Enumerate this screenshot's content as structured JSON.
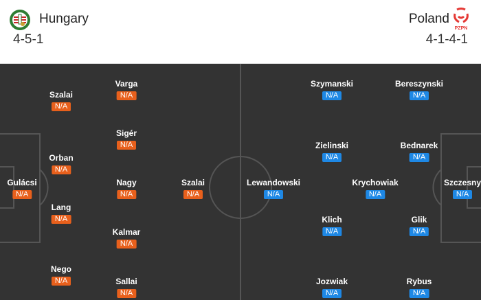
{
  "home": {
    "name": "Hungary",
    "formation": "4-5-1",
    "color": "#e8601c",
    "icon": "hungary-crest-icon",
    "players": [
      {
        "name": "Gulácsi",
        "rating": "N/A"
      },
      {
        "name": "Szalai",
        "rating": "N/A"
      },
      {
        "name": "Orban",
        "rating": "N/A"
      },
      {
        "name": "Lang",
        "rating": "N/A"
      },
      {
        "name": "Nego",
        "rating": "N/A"
      },
      {
        "name": "Varga",
        "rating": "N/A"
      },
      {
        "name": "Sigér",
        "rating": "N/A"
      },
      {
        "name": "Nagy",
        "rating": "N/A"
      },
      {
        "name": "Kalmar",
        "rating": "N/A"
      },
      {
        "name": "Sallai",
        "rating": "N/A"
      },
      {
        "name": "Szalai",
        "rating": "N/A"
      }
    ]
  },
  "away": {
    "name": "Poland",
    "formation": "4-1-4-1",
    "color": "#1e88e5",
    "icon": "pzpn-crest-icon",
    "crest_text": "PZPN",
    "players": [
      {
        "name": "Szczesny",
        "rating": "N/A"
      },
      {
        "name": "Bereszynski",
        "rating": "N/A"
      },
      {
        "name": "Bednarek",
        "rating": "N/A"
      },
      {
        "name": "Glik",
        "rating": "N/A"
      },
      {
        "name": "Rybus",
        "rating": "N/A"
      },
      {
        "name": "Krychowiak",
        "rating": "N/A"
      },
      {
        "name": "Szymanski",
        "rating": "N/A"
      },
      {
        "name": "Zielinski",
        "rating": "N/A"
      },
      {
        "name": "Klich",
        "rating": "N/A"
      },
      {
        "name": "Jozwiak",
        "rating": "N/A"
      },
      {
        "name": "Lewandowski",
        "rating": "N/A"
      }
    ]
  }
}
